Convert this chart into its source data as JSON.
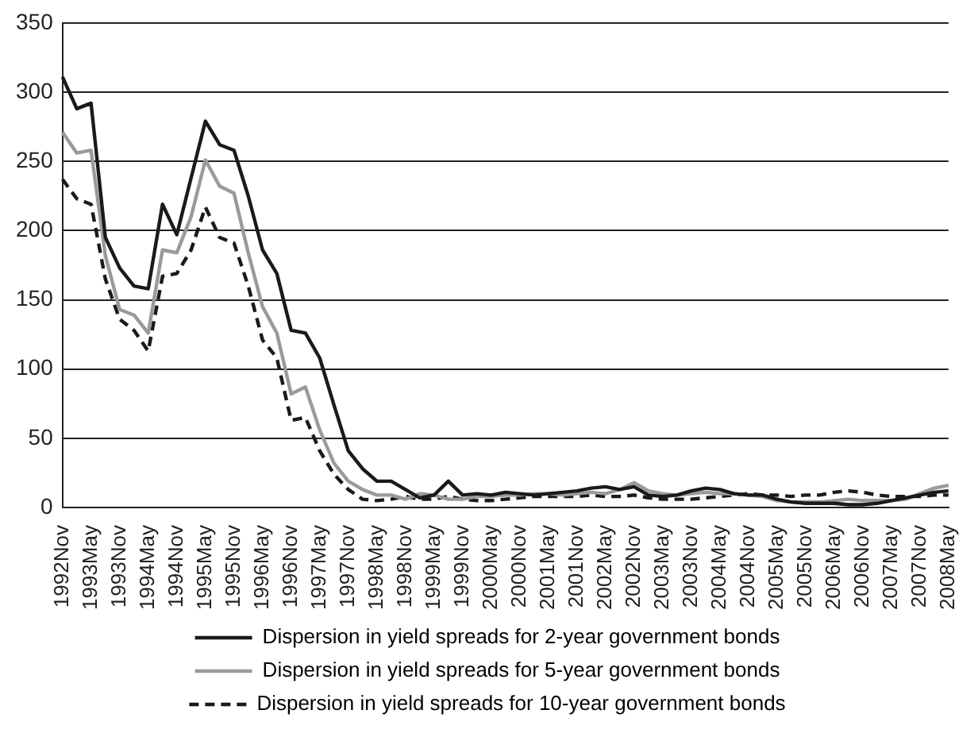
{
  "chart_data": {
    "type": "line",
    "categories": [
      "1992Nov",
      null,
      "1993May",
      null,
      "1993Nov",
      null,
      "1994May",
      null,
      "1994Nov",
      null,
      "1995May",
      null,
      "1995Nov",
      null,
      "1996May",
      null,
      "1996Nov",
      null,
      "1997May",
      null,
      "1997Nov",
      null,
      "1998May",
      null,
      "1998Nov",
      null,
      "1999May",
      null,
      "1999Nov",
      null,
      "2000May",
      null,
      "2000Nov",
      null,
      "2001May",
      null,
      "2001Nov",
      null,
      "2002May",
      null,
      "2002Nov",
      null,
      "2003May",
      null,
      "2003Nov",
      null,
      "2004May",
      null,
      "2004Nov",
      null,
      "2005May",
      null,
      "2005Nov",
      null,
      "2006May",
      null,
      "2006Nov",
      null,
      "2007May",
      null,
      "2007Nov",
      null,
      "2008May"
    ],
    "series": [
      {
        "name": "Dispersion in yield spreads for 2-year government bonds",
        "color": "#1a1a1a",
        "line_style": "solid",
        "values": [
          311,
          288,
          292,
          195,
          173,
          160,
          158,
          219,
          197,
          238,
          279,
          262,
          258,
          225,
          186,
          169,
          128,
          126,
          108,
          74,
          41,
          28,
          19,
          19,
          13,
          7,
          9,
          19,
          9,
          10,
          9,
          11,
          10,
          9,
          10,
          11,
          12,
          14,
          15,
          13,
          15,
          9,
          8,
          9,
          12,
          14,
          13,
          10,
          9,
          9,
          6,
          4,
          3,
          3,
          3,
          2,
          2,
          3,
          5,
          7,
          9,
          11,
          12
        ]
      },
      {
        "name": "Dispersion in yield spreads for 5-year government bonds",
        "color": "#9a9a9a",
        "line_style": "solid",
        "values": [
          271,
          256,
          258,
          182,
          143,
          139,
          126,
          186,
          184,
          210,
          251,
          232,
          227,
          184,
          145,
          126,
          82,
          87,
          56,
          32,
          19,
          13,
          9,
          9,
          6,
          10,
          9,
          6,
          6,
          8,
          8,
          9,
          9,
          10,
          10,
          9,
          10,
          11,
          10,
          13,
          18,
          12,
          10,
          9,
          10,
          11,
          10,
          10,
          9,
          8,
          5,
          4,
          4,
          4,
          5,
          6,
          5,
          5,
          5,
          6,
          10,
          14,
          16
        ]
      },
      {
        "name": "Dispersion in yield spreads for 10-year government bonds",
        "color": "#1a1a1a",
        "line_style": "dashed",
        "values": [
          237,
          223,
          219,
          165,
          136,
          128,
          113,
          167,
          169,
          186,
          217,
          195,
          191,
          160,
          121,
          108,
          63,
          65,
          41,
          24,
          13,
          6,
          5,
          6,
          8,
          6,
          6,
          8,
          6,
          5,
          5,
          6,
          7,
          8,
          8,
          8,
          8,
          9,
          8,
          8,
          9,
          7,
          6,
          6,
          6,
          7,
          8,
          9,
          10,
          9,
          9,
          8,
          9,
          9,
          11,
          12,
          11,
          9,
          8,
          8,
          8,
          9,
          9
        ]
      }
    ],
    "ylim": [
      0,
      350
    ],
    "yticks": [
      0,
      50,
      100,
      150,
      200,
      250,
      300,
      350
    ],
    "grid": "y",
    "legend": "bottom",
    "marker": "none"
  }
}
